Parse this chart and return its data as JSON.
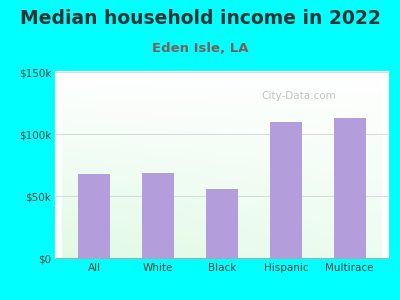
{
  "title": "Median household income in 2022",
  "subtitle": "Eden Isle, LA",
  "categories": [
    "All",
    "White",
    "Black",
    "Hispanic",
    "Multirace"
  ],
  "values": [
    68000,
    68500,
    56000,
    110000,
    113000
  ],
  "bar_color": "#b39ddb",
  "background_outer": "#00ffff",
  "title_color": "#333333",
  "subtitle_color": "#7b5e57",
  "tick_label_color": "#5d4037",
  "watermark": "City-Data.com",
  "ylim": [
    0,
    150000
  ],
  "yticks": [
    0,
    50000,
    100000,
    150000
  ],
  "ytick_labels": [
    "$0",
    "$50k",
    "$100k",
    "$150k"
  ],
  "title_fontsize": 13.5,
  "subtitle_fontsize": 9.5
}
